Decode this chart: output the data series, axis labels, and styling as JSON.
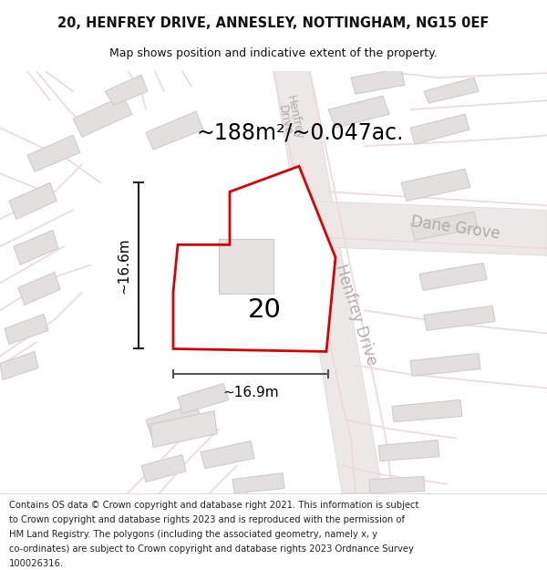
{
  "title_line1": "20, HENFREY DRIVE, ANNESLEY, NOTTINGHAM, NG15 0EF",
  "title_line2": "Map shows position and indicative extent of the property.",
  "area_text": "~188m²/~0.047ac.",
  "label_20": "20",
  "width_label": "~16.9m",
  "height_label": "~16.6m",
  "road_label_henfrey_diag": "Henfrey Drive",
  "road_label_henfrey_top": "HenfreyDrive",
  "dane_grove": "Dane Grove",
  "footer_lines": [
    "Contains OS data © Crown copyright and database right 2021. This information is subject",
    "to Crown copyright and database rights 2023 and is reproduced with the permission of",
    "HM Land Registry. The polygons (including the associated geometry, namely x, y",
    "co-ordinates) are subject to Crown copyright and database rights 2023 Ordnance Survey",
    "100026316."
  ],
  "map_bg": "#f5f2f2",
  "plot_outline_color": "#dd0000",
  "road_color": "#f0d8d8",
  "road_stroke": "#e8c8c8",
  "building_fill": "#e2dfdf",
  "building_stroke": "#d0cccc",
  "road_fill": "#f5f0f0",
  "road_band_color": "#e8d8d8",
  "dim_line_color": "#222222",
  "width_dim_color": "#555555",
  "road_label_color": "#b0acac",
  "text_color": "#111111",
  "footer_color": "#222222",
  "title_fontsize": 10.5,
  "subtitle_fontsize": 9.0,
  "area_fontsize": 17,
  "label_fontsize": 21,
  "dim_fontsize": 11,
  "road_fontsize": 12,
  "footer_fontsize": 7.2
}
